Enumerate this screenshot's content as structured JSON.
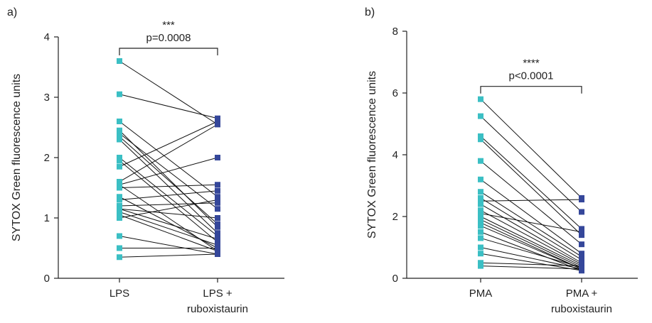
{
  "chart_data": [
    {
      "panel_label": "a)",
      "type": "scatter",
      "ylabel": "SYTOX Green fluorescence units",
      "ylim": [
        0,
        4
      ],
      "yticks": [
        0,
        1,
        2,
        3,
        4
      ],
      "categories": [
        [
          "LPS"
        ],
        [
          "LPS +",
          "ruboxistaurin"
        ]
      ],
      "significance": {
        "stars": "***",
        "p_text": "p=0.0008"
      },
      "colors": {
        "before": "#3bbfc4",
        "after": "#35479a",
        "line": "#111111"
      },
      "pairs": [
        [
          3.6,
          2.55
        ],
        [
          3.05,
          2.65
        ],
        [
          2.6,
          1.35
        ],
        [
          2.45,
          0.85
        ],
        [
          2.4,
          1.15
        ],
        [
          2.35,
          0.9
        ],
        [
          2.3,
          0.75
        ],
        [
          2.0,
          0.7
        ],
        [
          1.95,
          0.6
        ],
        [
          1.85,
          2.6
        ],
        [
          1.6,
          2.55
        ],
        [
          1.55,
          2.0
        ],
        [
          1.55,
          0.45
        ],
        [
          1.5,
          1.55
        ],
        [
          1.35,
          0.5
        ],
        [
          1.3,
          1.45
        ],
        [
          1.2,
          1.25
        ],
        [
          1.15,
          1.0
        ],
        [
          1.15,
          0.65
        ],
        [
          1.1,
          0.55
        ],
        [
          1.05,
          0.45
        ],
        [
          1.0,
          1.3
        ],
        [
          0.7,
          0.4
        ],
        [
          0.5,
          0.5
        ],
        [
          0.35,
          0.4
        ]
      ]
    },
    {
      "panel_label": "b)",
      "type": "scatter",
      "ylabel": "SYTOX Green fluorescence units",
      "ylim": [
        0,
        8
      ],
      "yticks": [
        0,
        2,
        4,
        6,
        8
      ],
      "categories": [
        [
          "PMA"
        ],
        [
          "PMA +",
          "ruboxistaurin"
        ]
      ],
      "significance": {
        "stars": "****",
        "p_text": "p<0.0001"
      },
      "colors": {
        "before": "#3bbfc4",
        "after": "#35479a",
        "line": "#111111"
      },
      "pairs": [
        [
          5.8,
          2.6
        ],
        [
          5.25,
          2.15
        ],
        [
          4.6,
          1.6
        ],
        [
          4.5,
          1.4
        ],
        [
          3.8,
          1.1
        ],
        [
          3.2,
          0.8
        ],
        [
          2.8,
          0.7
        ],
        [
          2.6,
          0.6
        ],
        [
          2.5,
          2.55
        ],
        [
          2.4,
          0.5
        ],
        [
          2.2,
          0.45
        ],
        [
          2.1,
          1.5
        ],
        [
          2.0,
          0.4
        ],
        [
          1.9,
          0.35
        ],
        [
          1.8,
          0.3
        ],
        [
          1.7,
          0.3
        ],
        [
          1.5,
          0.25
        ],
        [
          1.3,
          0.35
        ],
        [
          1.0,
          0.3
        ],
        [
          0.8,
          0.25
        ],
        [
          0.5,
          0.4
        ],
        [
          0.4,
          0.3
        ]
      ]
    }
  ]
}
